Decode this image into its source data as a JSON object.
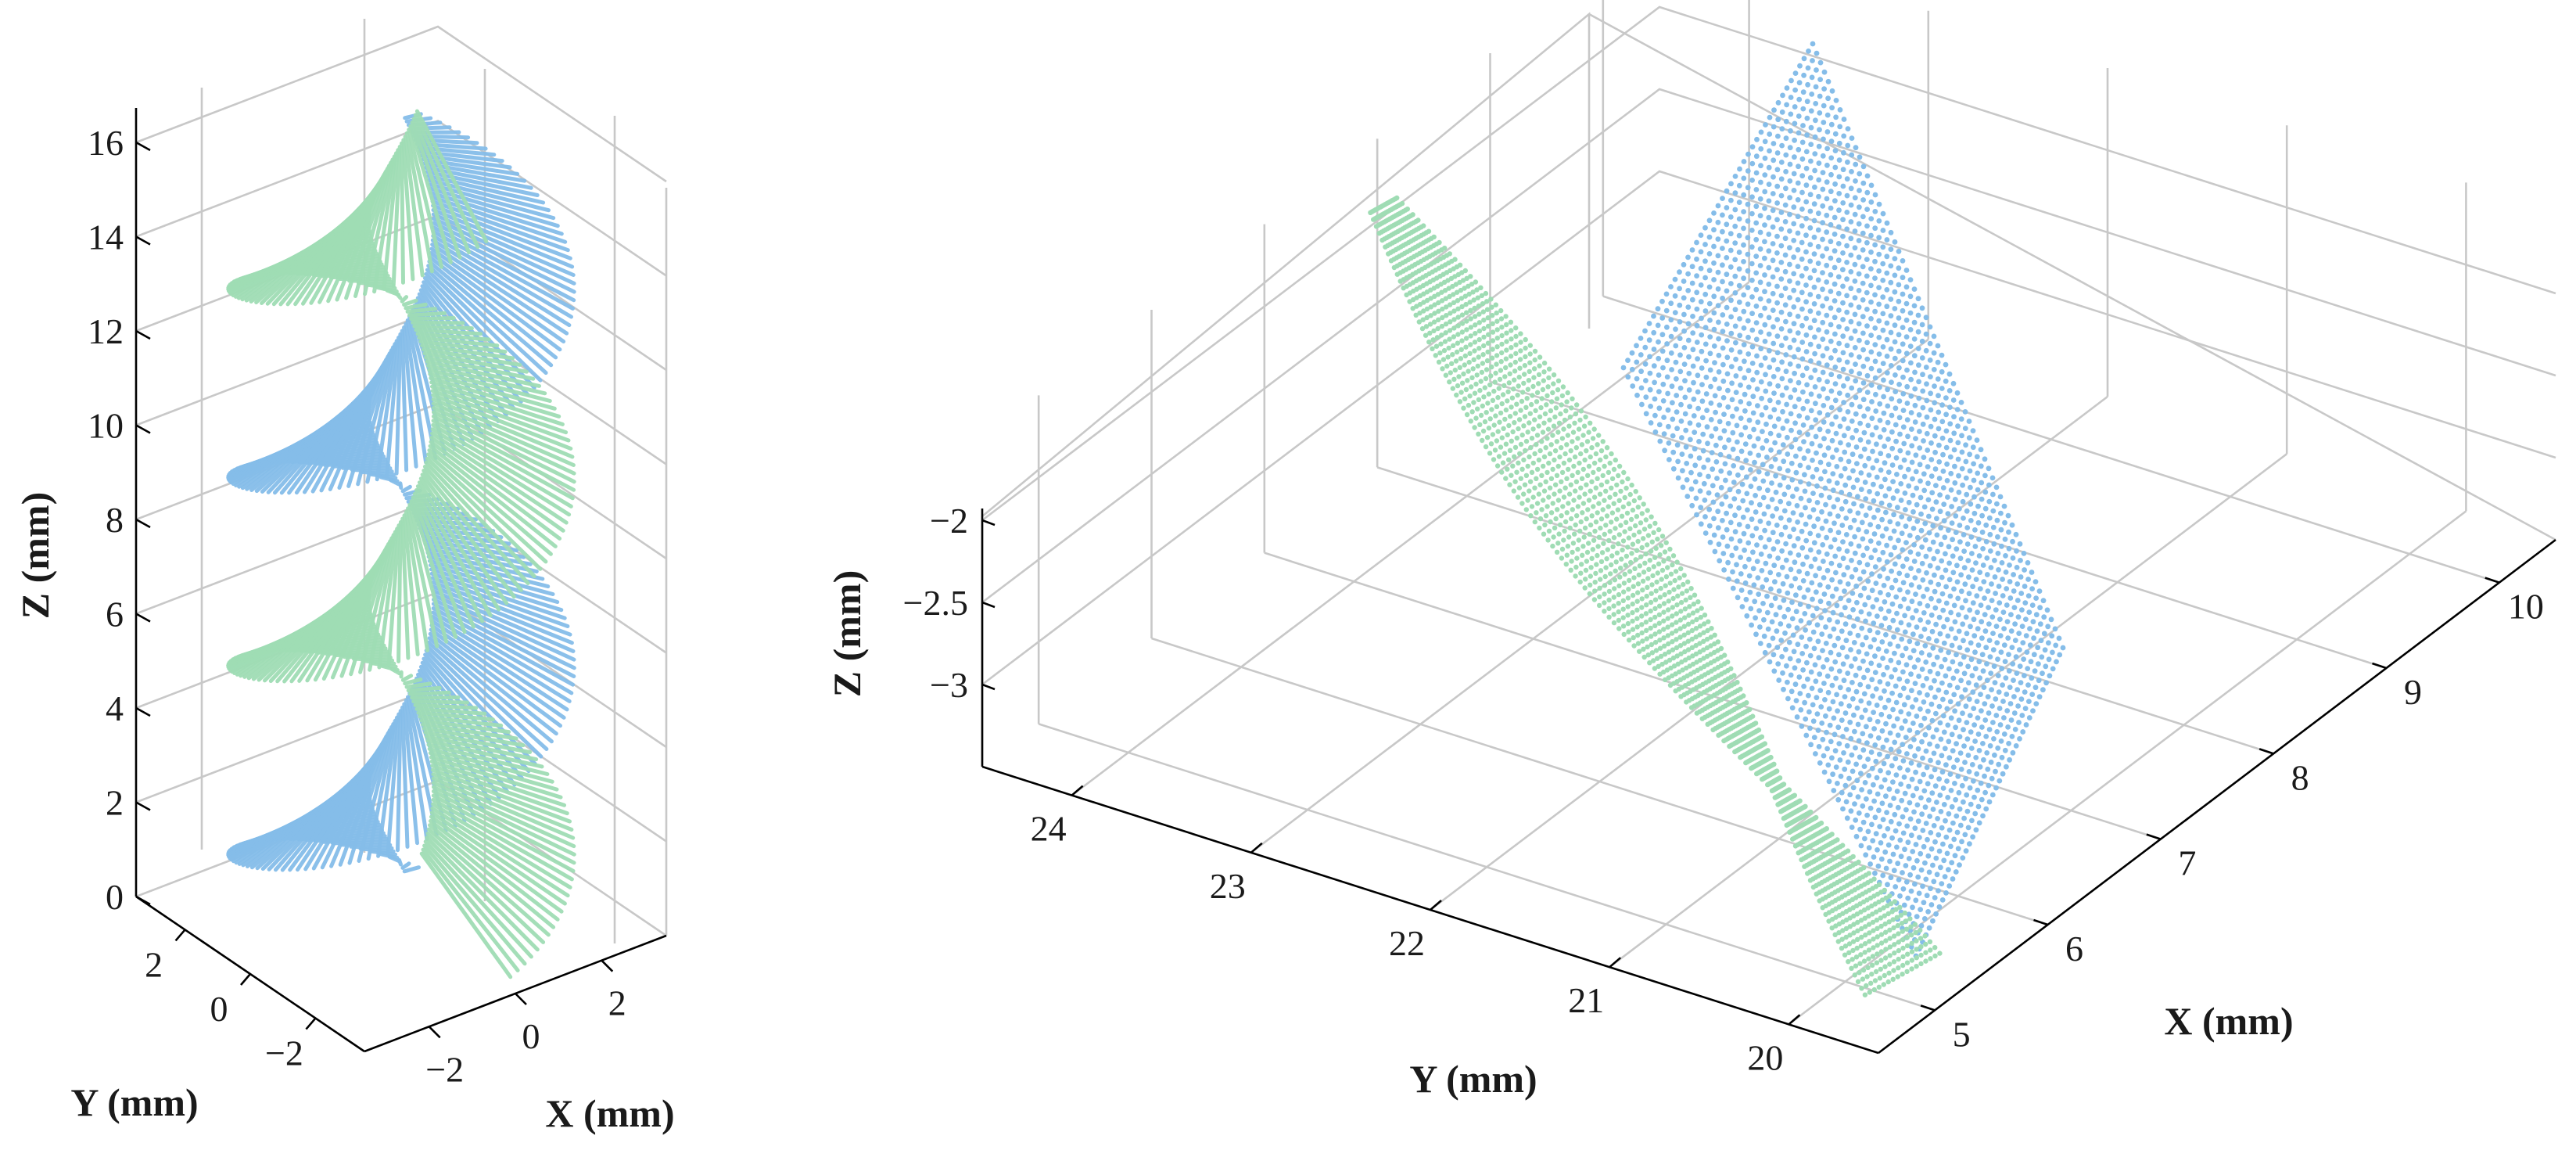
{
  "colors": {
    "series1": "#85bde9",
    "series2": "#9fdcb4",
    "grid": "#c8c8c8",
    "axis": "#000000"
  },
  "chart_data": [
    {
      "type": "scatter",
      "projection": "3d",
      "grid": true,
      "xlabel": "X (mm)",
      "ylabel": "Y (mm)",
      "zlabel": "Z (mm)",
      "xlim": [
        -3.5,
        3.5
      ],
      "ylim": [
        -3.5,
        3.5
      ],
      "zlim": [
        0,
        17
      ],
      "xticks": [
        "−2",
        "0",
        "2"
      ],
      "yticks": [
        "2",
        "0",
        "−2"
      ],
      "zticks": [
        "0",
        "2",
        "4",
        "6",
        "8",
        "10",
        "12",
        "14",
        "16"
      ],
      "series": [
        {
          "color": "#85bde9",
          "shape": "helical ribbon, radius ≈ 0.5–3.2 mm, pitch ≈ 8 mm, z ≈ 0–16.5 mm"
        },
        {
          "color": "#9fdcb4",
          "shape": "helical ribbon, radius ≈ 0.5–3.2 mm, pitch ≈ 8 mm, z ≈ 1.5–16.5 mm, offset half a turn"
        }
      ]
    },
    {
      "type": "scatter",
      "projection": "3d",
      "grid": true,
      "xlabel": "X (mm)",
      "ylabel": "Y (mm)",
      "zlabel": "Z (mm)",
      "xlim": [
        4.5,
        10.5
      ],
      "ylim": [
        19.5,
        24.5
      ],
      "zlim": [
        -3.5,
        -1.5
      ],
      "xticks": [
        "5",
        "6",
        "7",
        "8",
        "9",
        "10"
      ],
      "yticks": [
        "24",
        "23",
        "22",
        "21",
        "20"
      ],
      "zticks": [
        "−2",
        "−2.5",
        "−3"
      ],
      "series": [
        {
          "color": "#85bde9",
          "shape": "twisted quadrilateral surface patch"
        },
        {
          "color": "#9fdcb4",
          "shape": "narrow twisted surface strip"
        }
      ]
    }
  ]
}
